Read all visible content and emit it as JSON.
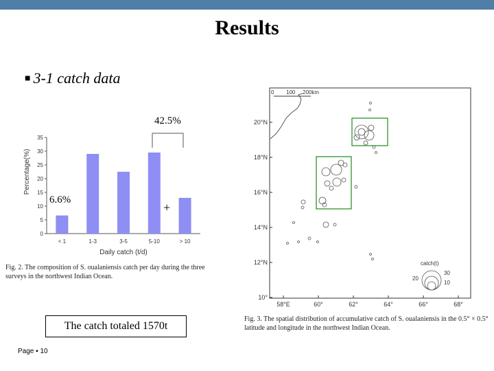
{
  "slide": {
    "title": "Results",
    "bullet": "3-1 catch data",
    "annotation_high": "42.5%",
    "annotation_low": "6.6%",
    "plus": "+",
    "catch_total": "The catch totaled 1570t",
    "page_label": "Page",
    "page_number": "10"
  },
  "fig2": {
    "caption": "Fig. 2. The composition of S. oualaniensis catch per day during the three surveys in the northwest Indian Ocean."
  },
  "fig3": {
    "caption": "Fig. 3. The spatial distribution of accumulative catch of S. oualaniensis in the 0.5° × 0.5° latitude and longitude in the northwest Indian Ocean.",
    "scale_labels": [
      "0",
      "100",
      "200km"
    ],
    "lat_labels": [
      "20°N",
      "18°N",
      "16°N",
      "14°N",
      "12°N",
      "10°"
    ],
    "lon_labels": [
      "58°E",
      "60°",
      "62°",
      "64°",
      "66°",
      "68°"
    ],
    "legend_title": "catch(t)",
    "legend_values": [
      "30",
      "20",
      "10"
    ]
  },
  "chart_data": {
    "type": "bar",
    "categories": [
      "< 1",
      "1-3",
      "3-5",
      "5-10",
      "> 10"
    ],
    "values": [
      6.6,
      29,
      22.5,
      29.5,
      13
    ],
    "xlabel": "Daily catch (t/d)",
    "ylabel": "Percentage(%)",
    "ylim": [
      0,
      35
    ],
    "yticks": [
      "0",
      "5",
      "10",
      "15",
      "20",
      "25",
      "30",
      "35"
    ],
    "grid": false,
    "bar_color": "#8e8ef4"
  }
}
